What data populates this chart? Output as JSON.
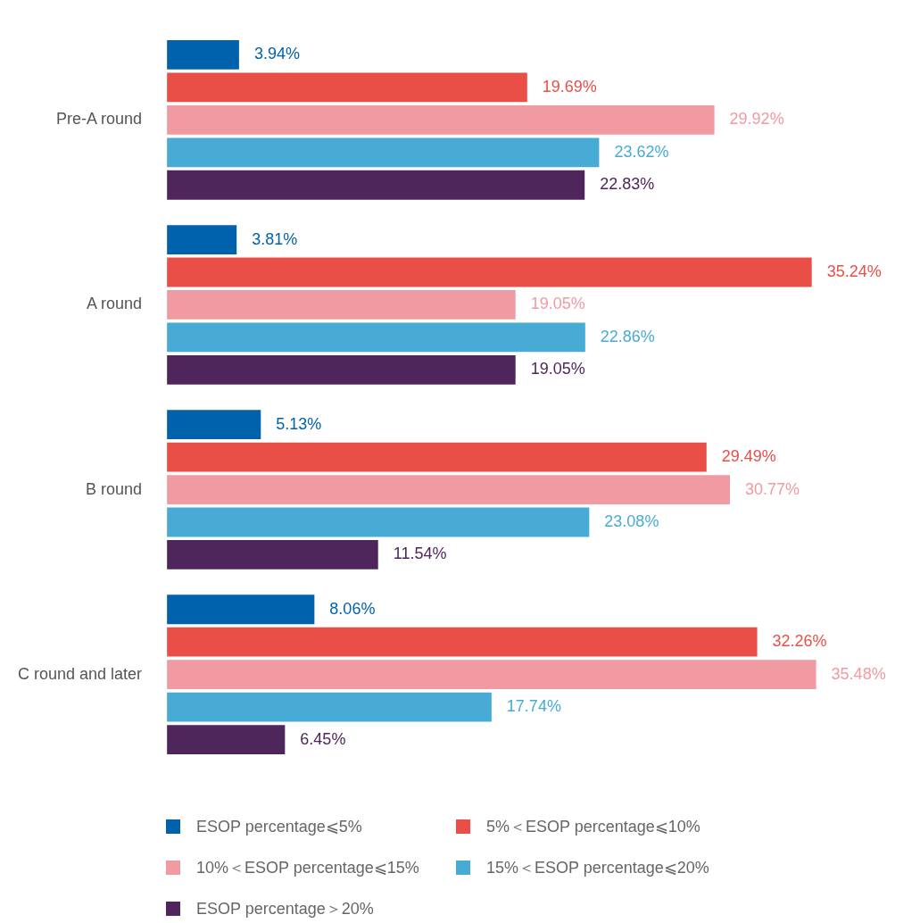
{
  "chart_data": {
    "type": "bar",
    "orientation": "horizontal",
    "legend": "bottom",
    "categories": [
      "Pre-A round",
      "A round",
      "B round",
      "C round and later"
    ],
    "series": [
      {
        "name": "ESOP percentage⩽5%",
        "color": "#0061ac",
        "values": [
          3.94,
          3.81,
          5.13,
          8.06
        ],
        "value_labels": [
          "3.94%",
          "3.81%",
          "5.13%",
          "8.06%"
        ]
      },
      {
        "name": "5%＜ESOP percentage⩽10%",
        "color": "#e94f47",
        "values": [
          19.69,
          35.24,
          29.49,
          32.26
        ],
        "value_labels": [
          "19.69%",
          "35.24%",
          "29.49%",
          "32.26%"
        ]
      },
      {
        "name": "10%＜ESOP percentage⩽15%",
        "color": "#f09aa2",
        "values": [
          29.92,
          19.05,
          30.77,
          35.48
        ],
        "value_labels": [
          "29.92%",
          "19.05%",
          "30.77%",
          "35.48%"
        ]
      },
      {
        "name": "15%＜ESOP percentage⩽20%",
        "color": "#47abd6",
        "values": [
          23.62,
          22.86,
          23.08,
          17.74
        ],
        "value_labels": [
          "23.62%",
          "22.86%",
          "23.08%",
          "17.74%"
        ]
      },
      {
        "name": "ESOP percentage＞20%",
        "color": "#4f265b",
        "values": [
          22.83,
          19.05,
          11.54,
          6.45
        ],
        "value_labels": [
          "22.83%",
          "19.05%",
          "11.54%",
          "6.45%"
        ]
      }
    ]
  }
}
